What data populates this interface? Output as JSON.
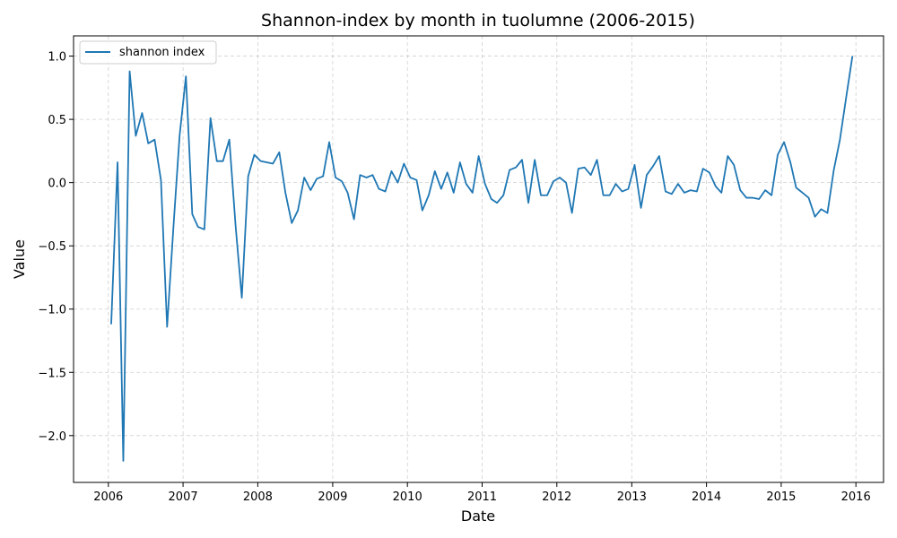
{
  "chart_data": {
    "type": "line",
    "title": "Shannon-index by month in tuolumne (2006-2015)",
    "xlabel": "Date",
    "ylabel": "Value",
    "xlim": [
      "2005-07-15",
      "2016-05-15"
    ],
    "ylim": [
      -2.37,
      1.16
    ],
    "x_ticks": [
      "2006",
      "2007",
      "2008",
      "2009",
      "2010",
      "2011",
      "2012",
      "2013",
      "2014",
      "2015",
      "2016"
    ],
    "y_ticks": [
      -2.0,
      -1.5,
      -1.0,
      -0.5,
      0.0,
      0.5,
      1.0
    ],
    "y_tick_labels": [
      "−2.0",
      "−1.5",
      "−1.0",
      "−0.5",
      "0.0",
      "0.5",
      "1.0"
    ],
    "grid": true,
    "legend_position": "top-left",
    "line_color": "#1f77b4",
    "series": [
      {
        "name": "shannon index",
        "x": [
          "2006-01",
          "2006-02",
          "2006-03",
          "2006-04",
          "2006-05",
          "2006-06",
          "2006-07",
          "2006-08",
          "2006-09",
          "2006-10",
          "2006-11",
          "2006-12",
          "2007-01",
          "2007-02",
          "2007-03",
          "2007-04",
          "2007-05",
          "2007-06",
          "2007-07",
          "2007-08",
          "2007-09",
          "2007-10",
          "2007-11",
          "2007-12",
          "2008-01",
          "2008-02",
          "2008-03",
          "2008-04",
          "2008-05",
          "2008-06",
          "2008-07",
          "2008-08",
          "2008-09",
          "2008-10",
          "2008-11",
          "2008-12",
          "2009-01",
          "2009-02",
          "2009-03",
          "2009-04",
          "2009-05",
          "2009-06",
          "2009-07",
          "2009-08",
          "2009-09",
          "2009-10",
          "2009-11",
          "2009-12",
          "2010-01",
          "2010-02",
          "2010-03",
          "2010-04",
          "2010-05",
          "2010-06",
          "2010-07",
          "2010-08",
          "2010-09",
          "2010-10",
          "2010-11",
          "2010-12",
          "2011-01",
          "2011-02",
          "2011-03",
          "2011-04",
          "2011-05",
          "2011-06",
          "2011-07",
          "2011-08",
          "2011-09",
          "2011-10",
          "2011-11",
          "2011-12",
          "2012-01",
          "2012-02",
          "2012-03",
          "2012-04",
          "2012-05",
          "2012-06",
          "2012-07",
          "2012-08",
          "2012-09",
          "2012-10",
          "2012-11",
          "2012-12",
          "2013-01",
          "2013-02",
          "2013-03",
          "2013-04",
          "2013-05",
          "2013-06",
          "2013-07",
          "2013-08",
          "2013-09",
          "2013-10",
          "2013-11",
          "2013-12",
          "2014-01",
          "2014-02",
          "2014-03",
          "2014-04",
          "2014-05",
          "2014-06",
          "2014-07",
          "2014-08",
          "2014-09",
          "2014-10",
          "2014-11",
          "2014-12",
          "2015-01",
          "2015-02",
          "2015-03",
          "2015-04",
          "2015-05",
          "2015-06",
          "2015-07",
          "2015-08",
          "2015-09",
          "2015-10",
          "2015-11",
          "2015-12"
        ],
        "values": [
          -1.12,
          0.16,
          -2.2,
          0.88,
          0.37,
          0.55,
          0.31,
          0.34,
          0.02,
          -1.14,
          -0.35,
          0.37,
          0.84,
          -0.25,
          -0.35,
          -0.37,
          0.51,
          0.17,
          0.17,
          0.34,
          -0.35,
          -0.91,
          0.05,
          0.22,
          0.17,
          0.16,
          0.15,
          0.24,
          -0.08,
          -0.32,
          -0.22,
          0.04,
          -0.06,
          0.03,
          0.05,
          0.32,
          0.04,
          0.01,
          -0.08,
          -0.29,
          0.06,
          0.04,
          0.06,
          -0.05,
          -0.07,
          0.09,
          0.0,
          0.15,
          0.04,
          0.02,
          -0.22,
          -0.1,
          0.09,
          -0.05,
          0.08,
          -0.08,
          0.16,
          -0.01,
          -0.08,
          0.21,
          -0.01,
          -0.13,
          -0.16,
          -0.1,
          0.1,
          0.12,
          0.18,
          -0.16,
          0.18,
          -0.1,
          -0.1,
          0.01,
          0.04,
          0.0,
          -0.24,
          0.11,
          0.12,
          0.06,
          0.18,
          -0.1,
          -0.1,
          -0.01,
          -0.07,
          -0.05,
          0.14,
          -0.2,
          0.06,
          0.13,
          0.21,
          -0.07,
          -0.09,
          -0.01,
          -0.08,
          -0.06,
          -0.07,
          0.11,
          0.08,
          -0.03,
          -0.08,
          0.21,
          0.14,
          -0.06,
          -0.12,
          -0.12,
          -0.13,
          -0.06,
          -0.1,
          0.22,
          0.32,
          0.16,
          -0.04,
          -0.08,
          -0.12,
          -0.27,
          -0.21,
          -0.24,
          0.1,
          0.34,
          0.68,
          1.0
        ]
      }
    ]
  }
}
